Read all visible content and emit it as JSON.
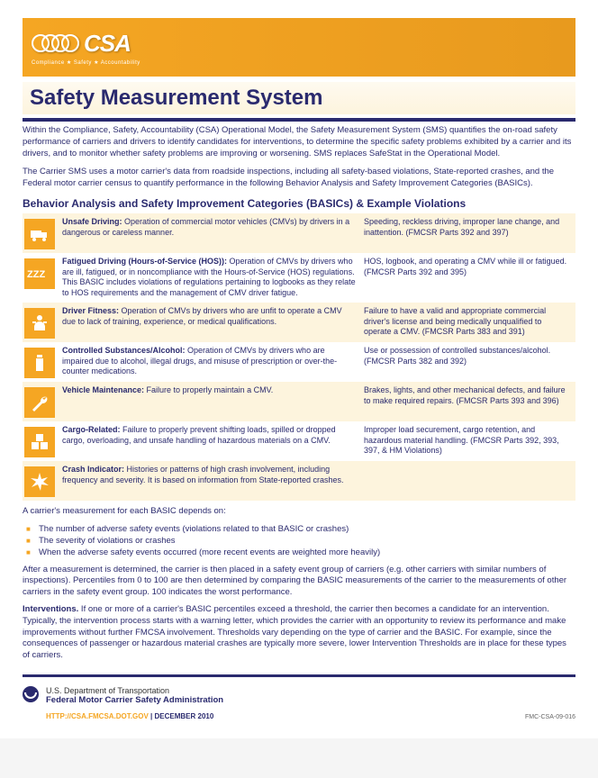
{
  "banner": {
    "logo_text": "CSA",
    "tagline": "Compliance ★ Safety ★ Accountability"
  },
  "page_title": "Safety Measurement System",
  "intro": [
    "Within the Compliance, Safety, Accountability (CSA) Operational Model, the Safety Measurement System (SMS) quantifies the on-road safety performance of carriers and drivers to identify candidates for interventions, to determine the specific safety problems exhibited by a carrier and its drivers, and to monitor whether safety problems are improving or worsening. SMS replaces SafeStat in the Operational Model.",
    "The Carrier SMS uses a motor carrier's data from roadside inspections, including all safety-based violations, State-reported crashes, and the Federal motor carrier census to quantify performance in the following Behavior Analysis and Safety Improvement Categories (BASICs)."
  ],
  "section_heading": "Behavior Analysis and Safety Improvement Categories (BASICs) & Example Violations",
  "basics": [
    {
      "title": "Unsafe Driving:",
      "desc": " Operation of commercial motor vehicles (CMVs) by drivers in a dangerous or careless manner.",
      "right": "Speeding, reckless driving, improper lane change, and inattention. (FMCSR Parts 392 and 397)",
      "tinted": true
    },
    {
      "title": "Fatigued Driving (Hours-of-Service (HOS)):",
      "desc": " Operation of CMVs by drivers who are ill, fatigued, or in noncompliance with the Hours-of-Service (HOS) regulations. This BASIC includes violations of regulations pertaining to logbooks as they relate to HOS requirements and the management of CMV driver fatigue.",
      "right": "HOS, logbook, and operating a CMV while ill or fatigued. (FMCSR Parts 392 and 395)",
      "tinted": false
    },
    {
      "title": "Driver Fitness:",
      "desc": " Operation of CMVs by drivers who are unfit to operate a CMV due to lack of training, experience, or medical qualifications.",
      "right": "Failure to have a valid and appropriate commercial driver's license and being medically unqualified to operate a CMV. (FMCSR Parts 383 and 391)",
      "tinted": true
    },
    {
      "title": "Controlled Substances/Alcohol:",
      "desc": " Operation of CMVs by drivers who are impaired due to alcohol, illegal drugs, and misuse of prescription or over-the-counter medications.",
      "right": "Use or possession of controlled substances/alcohol. (FMCSR Parts 382 and 392)",
      "tinted": false
    },
    {
      "title": "Vehicle Maintenance:",
      "desc": " Failure to properly maintain a CMV.",
      "right": "Brakes, lights, and other mechanical defects, and failure to make required repairs. (FMCSR Parts 393 and 396)",
      "tinted": true
    },
    {
      "title": "Cargo-Related:",
      "desc": " Failure to properly prevent shifting loads, spilled or dropped cargo, overloading, and unsafe handling of hazardous materials on a CMV.",
      "right": "Improper load securement, cargo retention, and hazardous material handling. (FMCSR Parts 392, 393, 397, & HM Violations)",
      "tinted": false
    },
    {
      "title": "Crash Indicator:",
      "desc": " Histories or patterns of high crash involvement, including frequency and severity. It is based on information from State-reported crashes.",
      "right": "",
      "tinted": true
    }
  ],
  "depends_intro": "A carrier's measurement for each BASIC depends on:",
  "depends_bullets": [
    "The number of adverse safety events (violations related to that BASIC or crashes)",
    "The severity of violations or crashes",
    "When the adverse safety events occurred (more recent events are weighted more heavily)"
  ],
  "after_measure": "After a measurement is determined, the carrier is then placed in a safety event group of carriers (e.g. other carriers with similar numbers of inspections). Percentiles from 0 to 100 are then determined by comparing the BASIC measurements of the carrier to the measurements of other carriers in the safety event group. 100 indicates the worst performance.",
  "interventions_label": "Interventions.",
  "interventions_text": " If one or more of a carrier's BASIC percentiles exceed a threshold, the carrier then becomes a candidate for an intervention. Typically, the intervention process starts with a warning letter, which provides the carrier with an opportunity to review its performance and make improvements without further FMCSA involvement. Thresholds vary depending on the type of carrier and the BASIC. For example, since the consequences of passenger or hazardous material crashes are typically more severe, lower Intervention Thresholds are in place for these types of carriers.",
  "footer": {
    "line1": "U.S. Department of Transportation",
    "line2": "Federal Motor Carrier Safety Administration",
    "url": "HTTP://CSA.FMCSA.DOT.GOV",
    "date": "DECEMBER 2010",
    "code": "FMC-CSA-09-016"
  },
  "icons": [
    "truck-icon",
    "sleep-icon",
    "person-icon",
    "bottle-icon",
    "wrench-icon",
    "cargo-icon",
    "crash-icon"
  ],
  "colors": {
    "brand_orange": "#f5a623",
    "brand_navy": "#2a2a6e",
    "tint_bg": "#fdf4dd"
  }
}
